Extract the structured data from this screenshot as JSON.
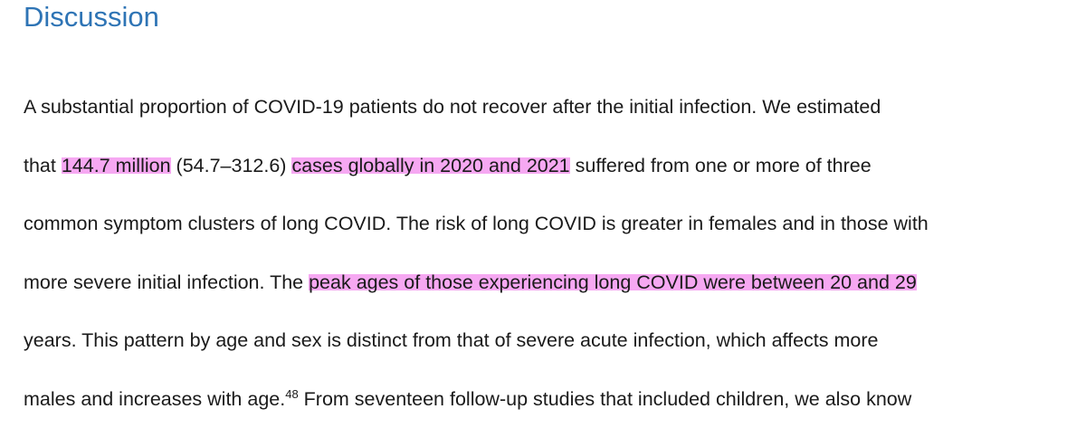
{
  "heading": "Discussion",
  "lines": {
    "l1": "A substantial proportion of COVID-19 patients do not recover after the initial infection. We estimated",
    "l2": {
      "a": "that ",
      "b": "144.7 million",
      "c": " (54.7–312.6) ",
      "d": "cases globally in 2020 and 2021",
      "e": " suffered from one or more of three"
    },
    "l3": "common symptom clusters of long COVID. The risk of long COVID is greater in females and in those with",
    "l4": {
      "a": "more severe initial infection. The ",
      "b": "peak ages of those experiencing long COVID were between 20 and 29"
    },
    "l5": "years. This pattern by age and sex is distinct from that of severe acute infection, which affects more",
    "l6": {
      "a": "males and increases with age.",
      "ref": "48",
      "b": " From seventeen follow-up studies that included children, we also know"
    }
  },
  "highlight_color": "#f6a8f2",
  "heading_color": "#2e74b5"
}
